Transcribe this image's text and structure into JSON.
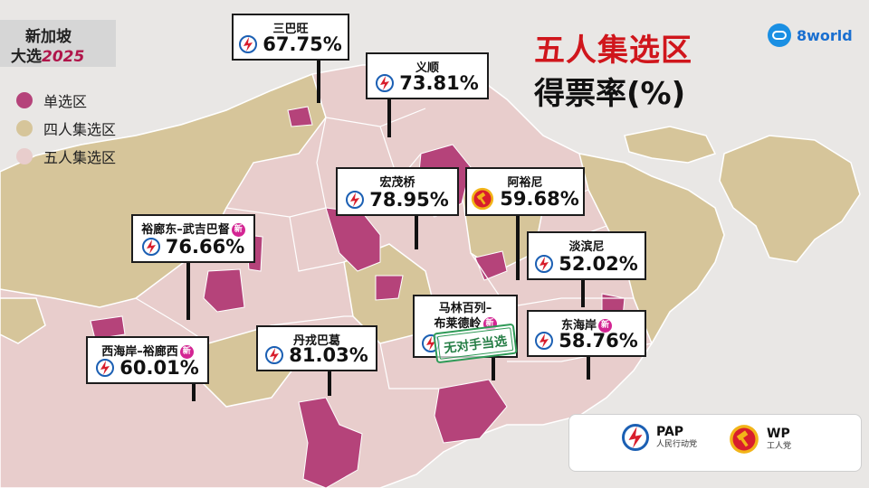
{
  "tag": {
    "line1": "新加坡",
    "line2": "大选",
    "year": "2025"
  },
  "title": {
    "line1": "五人集选区",
    "line2": "得票率(%)"
  },
  "brand": {
    "name": "8world",
    "icon": "8world-logo-icon"
  },
  "legend": [
    {
      "label": "单选区",
      "color": "#b5437a"
    },
    {
      "label": "四人集选区",
      "color": "#d6c59a"
    },
    {
      "label": "五人集选区",
      "color": "#e8cdcc"
    }
  ],
  "results": [
    {
      "name": "三巴旺",
      "pct": "67.75%",
      "party": "PAP",
      "new": false
    },
    {
      "name": "义顺",
      "pct": "73.81%",
      "party": "PAP",
      "new": false
    },
    {
      "name": "宏茂桥",
      "pct": "78.95%",
      "party": "PAP",
      "new": false
    },
    {
      "name": "阿裕尼",
      "pct": "59.68%",
      "party": "WP",
      "new": false
    },
    {
      "name": "裕廊东–武吉巴督",
      "pct": "76.66%",
      "party": "PAP",
      "new": true
    },
    {
      "name": "淡滨尼",
      "pct": "52.02%",
      "party": "PAP",
      "new": false
    },
    {
      "name": "马林百列–",
      "name2": "布莱德岭",
      "pct": "",
      "party": "PAP",
      "new": true,
      "walkover": "无对手当选"
    },
    {
      "name": "东海岸",
      "pct": "58.76%",
      "party": "PAP",
      "new": true
    },
    {
      "name": "西海岸–裕廊西",
      "pct": "60.01%",
      "party": "PAP",
      "new": true
    },
    {
      "name": "丹戎巴葛",
      "pct": "81.03%",
      "party": "PAP",
      "new": false
    }
  ],
  "new_badge": "新",
  "parties": [
    {
      "abbr": "PAP",
      "name": "人民行动党",
      "icon": "pap-logo-icon",
      "colors": {
        "red": "#d81e2c",
        "blue": "#1b5fb3"
      }
    },
    {
      "abbr": "WP",
      "name": "工人党",
      "icon": "wp-logo-icon",
      "colors": {
        "red": "#d81e2c",
        "yellow": "#f2b418"
      }
    }
  ]
}
